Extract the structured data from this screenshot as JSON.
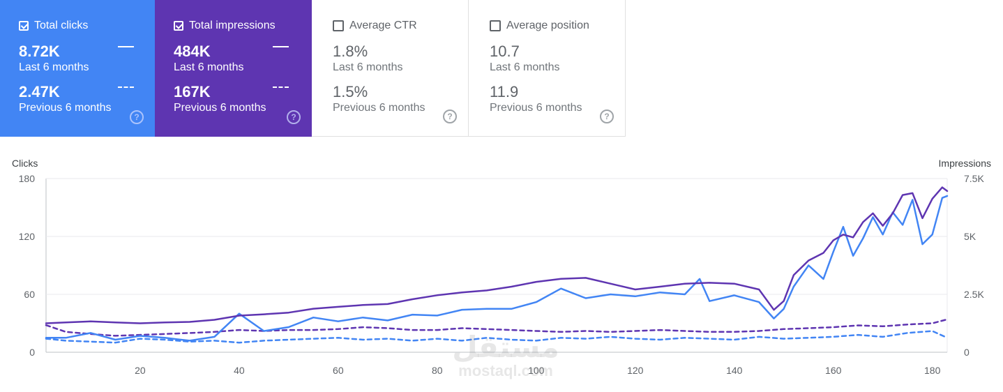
{
  "cards": {
    "clicks": {
      "label": "Total clicks",
      "checked": true,
      "current_value": "8.72K",
      "current_period": "Last 6 months",
      "previous_value": "2.47K",
      "previous_period": "Previous 6 months",
      "help_icon": "help-circle-icon"
    },
    "impressions": {
      "label": "Total impressions",
      "checked": true,
      "current_value": "484K",
      "current_period": "Last 6 months",
      "previous_value": "167K",
      "previous_period": "Previous 6 months",
      "help_icon": "help-circle-icon"
    },
    "ctr": {
      "label": "Average CTR",
      "checked": false,
      "current_value": "1.8%",
      "current_period": "Last 6 months",
      "previous_value": "1.5%",
      "previous_period": "Previous 6 months",
      "help_icon": "help-circle-icon"
    },
    "position": {
      "label": "Average position",
      "checked": false,
      "current_value": "10.7",
      "current_period": "Last 6 months",
      "previous_value": "11.9",
      "previous_period": "Previous 6 months",
      "help_icon": "help-circle-icon"
    }
  },
  "colors": {
    "clicks": "#4285f4",
    "impressions": "#5e35b1",
    "grid": "#e8eaed",
    "axis_text": "#5f6368"
  },
  "watermark": {
    "big": "مستقل",
    "small": "mostaql.com"
  },
  "chart_data": {
    "type": "line",
    "xlabel": "",
    "ylabel": "Clicks",
    "y2label": "Impressions",
    "x_range": [
      1,
      183
    ],
    "ylim": [
      0,
      180
    ],
    "y2lim": [
      0,
      7500
    ],
    "x_ticks": [
      20,
      40,
      60,
      80,
      100,
      120,
      140,
      160,
      180
    ],
    "y_ticks": [
      0,
      60,
      120,
      180
    ],
    "y_tick_labels": [
      "0",
      "60",
      "120",
      "180"
    ],
    "y2_ticks": [
      0,
      2500,
      5000,
      7500
    ],
    "y2_tick_labels": [
      "0",
      "2.5K",
      "5K",
      "7.5K"
    ],
    "grid": true,
    "series": [
      {
        "name": "Total clicks",
        "axis": "left",
        "style": "solid",
        "color": "#4285f4",
        "points": [
          [
            1,
            15
          ],
          [
            5,
            15
          ],
          [
            10,
            20
          ],
          [
            15,
            13
          ],
          [
            20,
            17
          ],
          [
            25,
            15
          ],
          [
            30,
            12
          ],
          [
            35,
            16
          ],
          [
            40,
            40
          ],
          [
            45,
            22
          ],
          [
            50,
            26
          ],
          [
            55,
            36
          ],
          [
            60,
            32
          ],
          [
            65,
            36
          ],
          [
            70,
            33
          ],
          [
            75,
            39
          ],
          [
            80,
            38
          ],
          [
            85,
            44
          ],
          [
            90,
            45
          ],
          [
            95,
            45
          ],
          [
            100,
            52
          ],
          [
            105,
            66
          ],
          [
            110,
            56
          ],
          [
            115,
            60
          ],
          [
            120,
            58
          ],
          [
            125,
            62
          ],
          [
            130,
            60
          ],
          [
            133,
            76
          ],
          [
            135,
            53
          ],
          [
            140,
            59
          ],
          [
            145,
            52
          ],
          [
            148,
            35
          ],
          [
            150,
            45
          ],
          [
            152,
            68
          ],
          [
            155,
            90
          ],
          [
            158,
            76
          ],
          [
            160,
            104
          ],
          [
            162,
            130
          ],
          [
            164,
            100
          ],
          [
            166,
            118
          ],
          [
            168,
            140
          ],
          [
            170,
            122
          ],
          [
            172,
            145
          ],
          [
            174,
            132
          ],
          [
            176,
            158
          ],
          [
            178,
            112
          ],
          [
            180,
            122
          ],
          [
            182,
            160
          ],
          [
            183,
            162
          ]
        ]
      },
      {
        "name": "Total impressions",
        "axis": "right",
        "style": "solid",
        "color": "#5e35b1",
        "points": [
          [
            1,
            1250
          ],
          [
            5,
            1290
          ],
          [
            10,
            1330
          ],
          [
            15,
            1290
          ],
          [
            20,
            1250
          ],
          [
            25,
            1290
          ],
          [
            30,
            1310
          ],
          [
            35,
            1400
          ],
          [
            40,
            1580
          ],
          [
            45,
            1640
          ],
          [
            50,
            1710
          ],
          [
            55,
            1880
          ],
          [
            60,
            1960
          ],
          [
            65,
            2040
          ],
          [
            70,
            2080
          ],
          [
            75,
            2290
          ],
          [
            80,
            2460
          ],
          [
            85,
            2580
          ],
          [
            90,
            2670
          ],
          [
            95,
            2830
          ],
          [
            100,
            3040
          ],
          [
            105,
            3170
          ],
          [
            110,
            3210
          ],
          [
            115,
            2960
          ],
          [
            120,
            2710
          ],
          [
            125,
            2830
          ],
          [
            130,
            2960
          ],
          [
            135,
            3000
          ],
          [
            140,
            2960
          ],
          [
            145,
            2710
          ],
          [
            148,
            1830
          ],
          [
            150,
            2210
          ],
          [
            152,
            3330
          ],
          [
            155,
            3960
          ],
          [
            158,
            4290
          ],
          [
            160,
            4830
          ],
          [
            162,
            5080
          ],
          [
            164,
            4960
          ],
          [
            166,
            5620
          ],
          [
            168,
            6000
          ],
          [
            170,
            5460
          ],
          [
            172,
            6000
          ],
          [
            174,
            6790
          ],
          [
            176,
            6870
          ],
          [
            178,
            5790
          ],
          [
            180,
            6630
          ],
          [
            182,
            7120
          ],
          [
            183,
            6960
          ]
        ]
      },
      {
        "name": "Total clicks (previous)",
        "axis": "left",
        "style": "dashed",
        "color": "#4285f4",
        "points": [
          [
            1,
            14
          ],
          [
            5,
            12
          ],
          [
            10,
            11
          ],
          [
            15,
            10
          ],
          [
            20,
            14
          ],
          [
            25,
            13
          ],
          [
            30,
            11
          ],
          [
            35,
            12
          ],
          [
            40,
            10
          ],
          [
            45,
            12
          ],
          [
            50,
            13
          ],
          [
            55,
            14
          ],
          [
            60,
            15
          ],
          [
            65,
            13
          ],
          [
            70,
            14
          ],
          [
            75,
            12
          ],
          [
            80,
            14
          ],
          [
            85,
            12
          ],
          [
            90,
            15
          ],
          [
            95,
            13
          ],
          [
            100,
            12
          ],
          [
            105,
            15
          ],
          [
            110,
            14
          ],
          [
            115,
            16
          ],
          [
            120,
            14
          ],
          [
            125,
            13
          ],
          [
            130,
            15
          ],
          [
            135,
            14
          ],
          [
            140,
            13
          ],
          [
            145,
            16
          ],
          [
            150,
            14
          ],
          [
            155,
            15
          ],
          [
            160,
            16
          ],
          [
            165,
            18
          ],
          [
            170,
            16
          ],
          [
            175,
            20
          ],
          [
            180,
            22
          ],
          [
            183,
            15
          ]
        ]
      },
      {
        "name": "Total impressions (previous)",
        "axis": "right",
        "style": "dashed",
        "color": "#5e35b1",
        "points": [
          [
            1,
            1170
          ],
          [
            5,
            880
          ],
          [
            10,
            790
          ],
          [
            15,
            710
          ],
          [
            20,
            750
          ],
          [
            25,
            790
          ],
          [
            30,
            830
          ],
          [
            35,
            880
          ],
          [
            40,
            960
          ],
          [
            45,
            920
          ],
          [
            50,
            960
          ],
          [
            55,
            960
          ],
          [
            60,
            1000
          ],
          [
            65,
            1080
          ],
          [
            70,
            1040
          ],
          [
            75,
            960
          ],
          [
            80,
            960
          ],
          [
            85,
            1040
          ],
          [
            90,
            1000
          ],
          [
            95,
            960
          ],
          [
            100,
            920
          ],
          [
            105,
            880
          ],
          [
            110,
            920
          ],
          [
            115,
            880
          ],
          [
            120,
            920
          ],
          [
            125,
            960
          ],
          [
            130,
            920
          ],
          [
            135,
            880
          ],
          [
            140,
            880
          ],
          [
            145,
            920
          ],
          [
            150,
            1000
          ],
          [
            155,
            1040
          ],
          [
            160,
            1080
          ],
          [
            165,
            1160
          ],
          [
            170,
            1120
          ],
          [
            175,
            1200
          ],
          [
            180,
            1250
          ],
          [
            183,
            1420
          ]
        ]
      }
    ]
  }
}
